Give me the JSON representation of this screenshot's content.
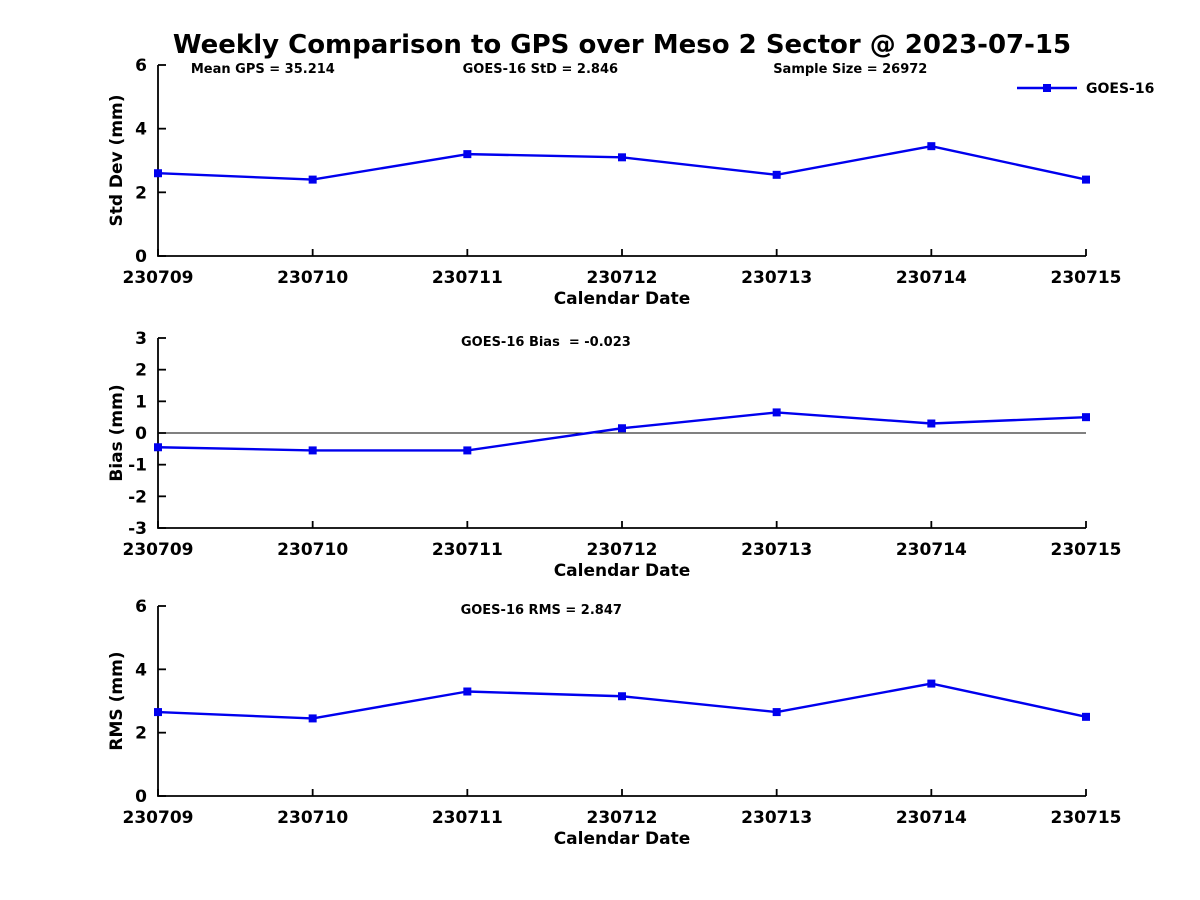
{
  "title": "Weekly Comparison to GPS over Meso 2 Sector @ 2023-07-15",
  "accent_color": "#0000ee",
  "chart_data": [
    {
      "type": "line",
      "panel": "std-dev",
      "categories": [
        "230709",
        "230710",
        "230711",
        "230712",
        "230713",
        "230714",
        "230715"
      ],
      "series": [
        {
          "name": "GOES-16",
          "color": "#0000ee",
          "marker": "square",
          "values": [
            2.6,
            2.4,
            3.2,
            3.1,
            2.55,
            3.45,
            2.4
          ]
        }
      ],
      "annotations": [
        {
          "text": "Mean GPS = 35.214",
          "fx": 0.113
        },
        {
          "text": "GOES-16 StD = 2.846",
          "fx": 0.412
        },
        {
          "text": "Sample Size = 26972",
          "fx": 0.746
        }
      ],
      "xlabel": "Calendar Date",
      "ylabel": "Std Dev (mm)",
      "ylim": [
        0,
        6
      ],
      "yticks": [
        0,
        2,
        4,
        6
      ],
      "grid": false,
      "zero_line": false,
      "legend": {
        "show": true,
        "label": "GOES-16",
        "position": "top-right-outside"
      }
    },
    {
      "type": "line",
      "panel": "bias",
      "categories": [
        "230709",
        "230710",
        "230711",
        "230712",
        "230713",
        "230714",
        "230715"
      ],
      "series": [
        {
          "name": "GOES-16",
          "color": "#0000ee",
          "marker": "square",
          "values": [
            -0.45,
            -0.55,
            -0.55,
            0.15,
            0.65,
            0.3,
            0.5
          ]
        }
      ],
      "annotations": [
        {
          "text": "GOES-16 Bias  = -0.023",
          "fx": 0.418
        }
      ],
      "xlabel": "Calendar Date",
      "ylabel": "Bias (mm)",
      "ylim": [
        -3,
        3
      ],
      "yticks": [
        -3,
        -2,
        -1,
        0,
        1,
        2,
        3
      ],
      "grid": false,
      "zero_line": true,
      "legend": {
        "show": false
      }
    },
    {
      "type": "line",
      "panel": "rms",
      "categories": [
        "230709",
        "230710",
        "230711",
        "230712",
        "230713",
        "230714",
        "230715"
      ],
      "series": [
        {
          "name": "GOES-16",
          "color": "#0000ee",
          "marker": "square",
          "values": [
            2.65,
            2.45,
            3.3,
            3.15,
            2.65,
            3.55,
            2.5
          ]
        }
      ],
      "annotations": [
        {
          "text": "GOES-16 RMS = 2.847",
          "fx": 0.413
        }
      ],
      "xlabel": "Calendar Date",
      "ylabel": "RMS (mm)",
      "ylim": [
        0,
        6
      ],
      "yticks": [
        0,
        2,
        4,
        6
      ],
      "grid": false,
      "zero_line": false,
      "legend": {
        "show": false
      }
    }
  ]
}
